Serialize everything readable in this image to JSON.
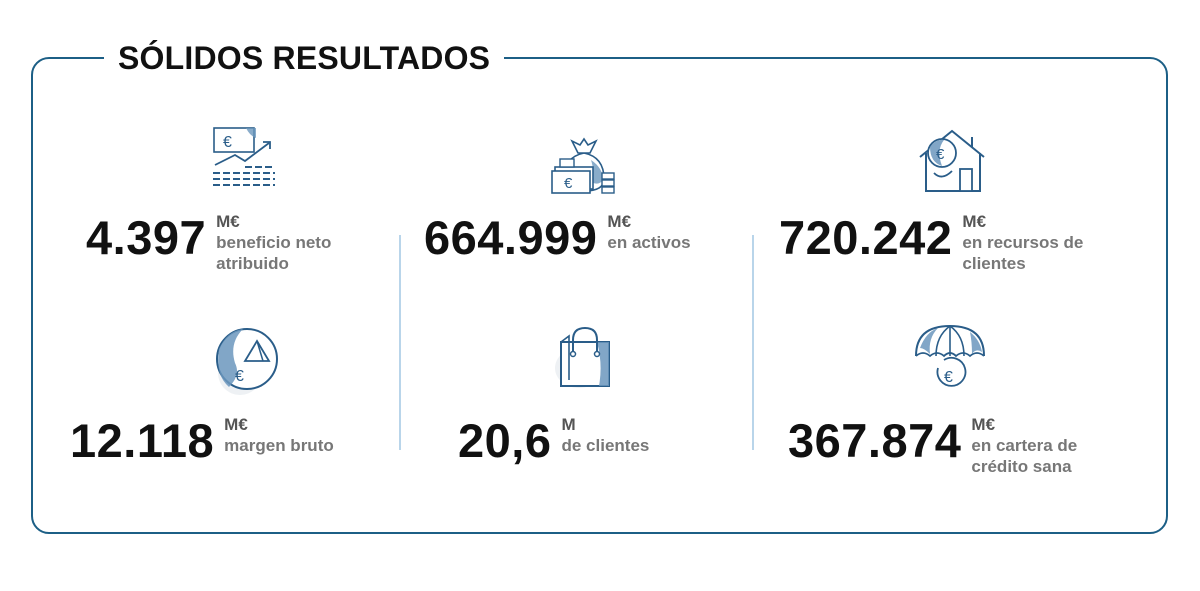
{
  "title": "SÓLIDOS RESULTADOS",
  "colors": {
    "frame": "#1c5f86",
    "icon_stroke": "#2a5d89",
    "icon_fill": "#6b97bd",
    "divider": "#b9d5ea"
  },
  "stats": [
    {
      "icon": "money-growth-chart-icon",
      "value": "4.397",
      "unit": "M€",
      "label_line1": "beneficio neto",
      "label_line2": "atribuido"
    },
    {
      "icon": "money-bag-icon",
      "value": "664.999",
      "unit": "M€",
      "label_line1": "en activos",
      "label_line2": ""
    },
    {
      "icon": "house-euro-icon",
      "value": "720.242",
      "unit": "M€",
      "label_line1": "en recursos de",
      "label_line2": "clientes"
    },
    {
      "icon": "globe-euro-icon",
      "value": "12.118",
      "unit": "M€",
      "label_line1": "margen bruto",
      "label_line2": ""
    },
    {
      "icon": "shopping-bag-icon",
      "value": "20,6",
      "unit": "M",
      "label_line1": "de clientes",
      "label_line2": ""
    },
    {
      "icon": "umbrella-euro-icon",
      "value": "367.874",
      "unit": "M€",
      "label_line1": "en cartera de",
      "label_line2": "crédito sana"
    }
  ]
}
